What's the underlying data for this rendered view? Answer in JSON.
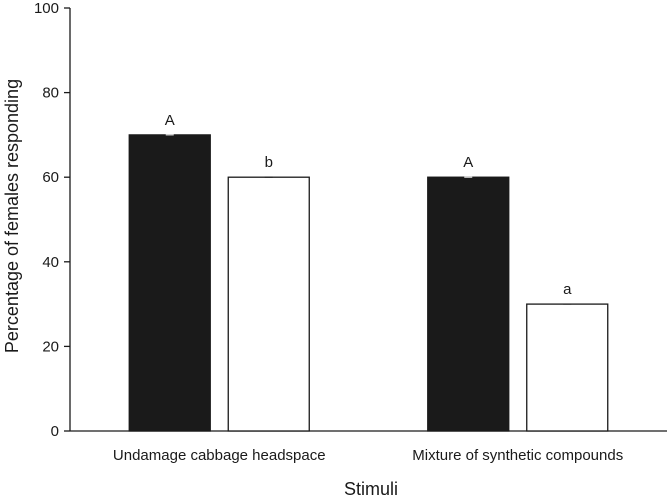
{
  "chart_data": {
    "type": "bar",
    "title": "",
    "xlabel": "Stimuli",
    "ylabel": "Percentage of females responding",
    "ylim": [
      0,
      100
    ],
    "yticks": [
      0,
      20,
      40,
      60,
      80,
      100
    ],
    "categories": [
      "Undamage cabbage headspace",
      "Mixture of synthetic compounds"
    ],
    "series": [
      {
        "color": "#1a1a1a",
        "values": [
          70,
          60
        ],
        "labels": [
          "A",
          "A"
        ]
      },
      {
        "color": "#ffffff",
        "values": [
          60,
          30
        ],
        "labels": [
          "b",
          "a"
        ]
      }
    ],
    "grid": false,
    "legend": "none"
  }
}
